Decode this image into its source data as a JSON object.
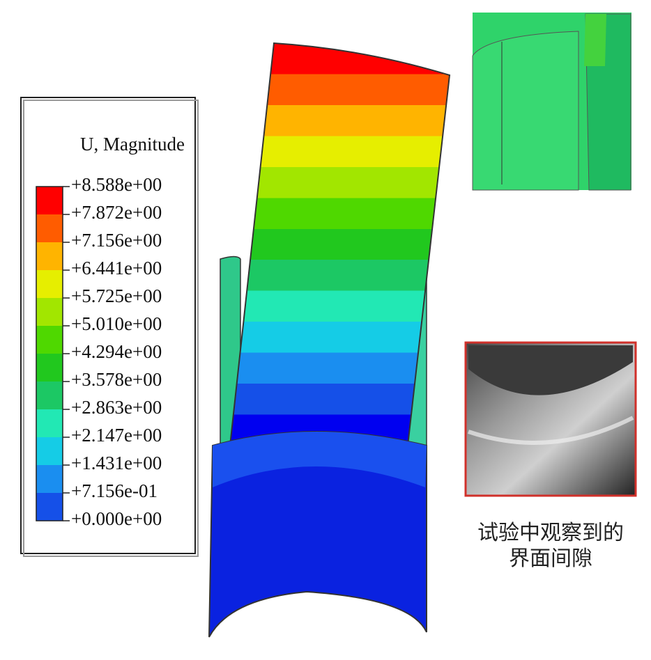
{
  "legend": {
    "title": "U, Magnitude",
    "labels": [
      "+8.588e+00",
      "+7.872e+00",
      "+7.156e+00",
      "+6.441e+00",
      "+5.725e+00",
      "+5.010e+00",
      "+4.294e+00",
      "+3.578e+00",
      "+2.863e+00",
      "+2.147e+00",
      "+1.431e+00",
      "+7.156e-01",
      "+0.000e+00"
    ],
    "colors": [
      "#ff0000",
      "#ff5c00",
      "#ffb400",
      "#e6ee00",
      "#a2e600",
      "#4fd800",
      "#21c81e",
      "#1cc864",
      "#22e8b4",
      "#15cce6",
      "#1a8ef0",
      "#1550e8",
      "#0000f0"
    ]
  },
  "caption": {
    "lines": [
      "试验中观察到的",
      "界面间隙"
    ]
  }
}
